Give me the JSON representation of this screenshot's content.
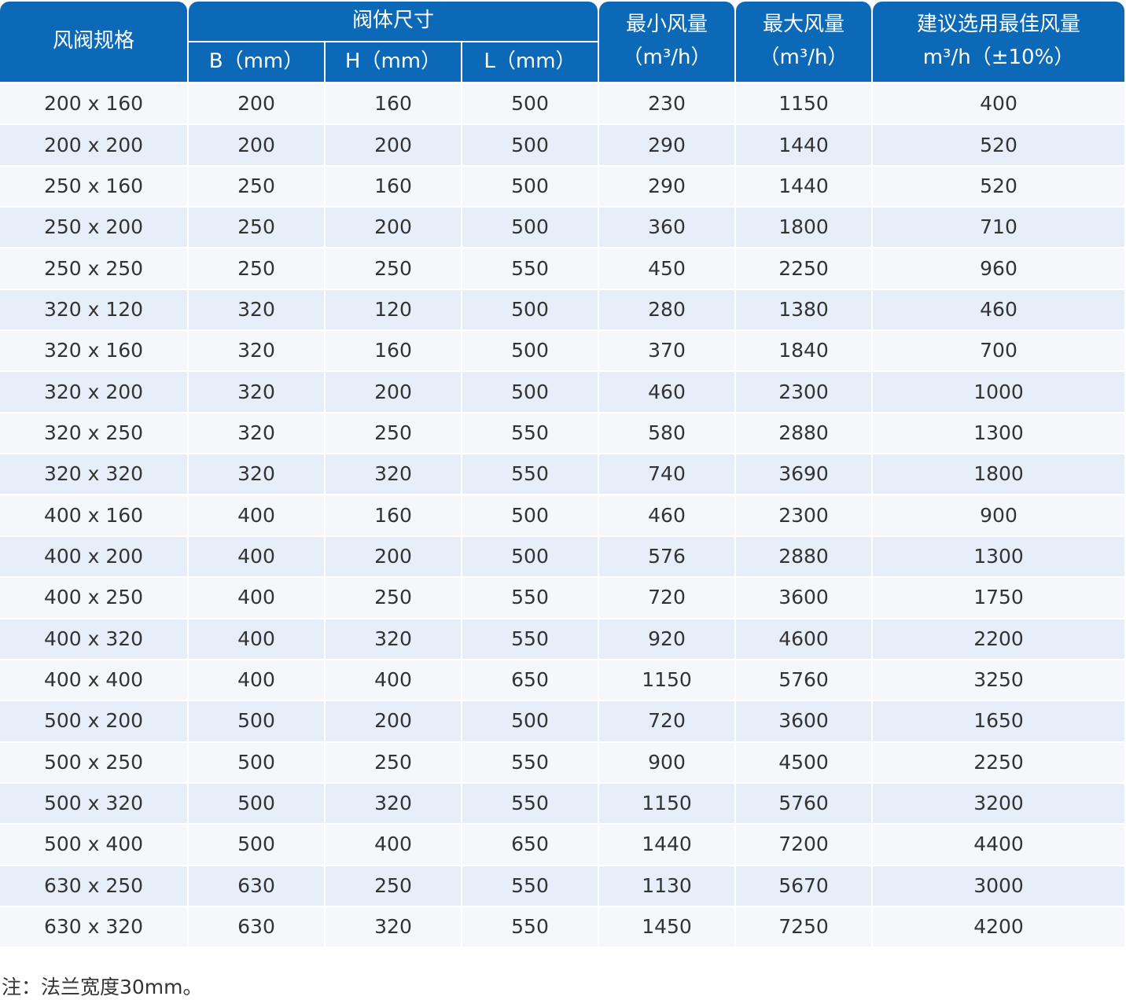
{
  "header": {
    "spec": "风阀规格",
    "body_size": "阀体尺寸",
    "b": "B（mm）",
    "h": "H（mm）",
    "l": "L（mm）",
    "min_flow": [
      "最小风量",
      "（m³/h）"
    ],
    "max_flow": [
      "最大风量",
      "（m³/h）"
    ],
    "best_flow": [
      "建议选用最佳风量",
      "m³/h（±10%）"
    ]
  },
  "table": {
    "rows": [
      [
        "200 x 160",
        "200",
        "160",
        "500",
        "230",
        "1150",
        "400"
      ],
      [
        "200 x 200",
        "200",
        "200",
        "500",
        "290",
        "1440",
        "520"
      ],
      [
        "250 x 160",
        "250",
        "160",
        "500",
        "290",
        "1440",
        "520"
      ],
      [
        "250 x 200",
        "250",
        "200",
        "500",
        "360",
        "1800",
        "710"
      ],
      [
        "250 x 250",
        "250",
        "250",
        "550",
        "450",
        "2250",
        "960"
      ],
      [
        "320 x 120",
        "320",
        "120",
        "500",
        "280",
        "1380",
        "460"
      ],
      [
        "320 x 160",
        "320",
        "160",
        "500",
        "370",
        "1840",
        "700"
      ],
      [
        "320 x 200",
        "320",
        "200",
        "500",
        "460",
        "2300",
        "1000"
      ],
      [
        "320 x 250",
        "320",
        "250",
        "550",
        "580",
        "2880",
        "1300"
      ],
      [
        "320 x 320",
        "320",
        "320",
        "550",
        "740",
        "3690",
        "1800"
      ],
      [
        "400 x 160",
        "400",
        "160",
        "500",
        "460",
        "2300",
        "900"
      ],
      [
        "400 x 200",
        "400",
        "200",
        "500",
        "576",
        "2880",
        "1300"
      ],
      [
        "400 x 250",
        "400",
        "250",
        "550",
        "720",
        "3600",
        "1750"
      ],
      [
        "400 x 320",
        "400",
        "320",
        "550",
        "920",
        "4600",
        "2200"
      ],
      [
        "400 x 400",
        "400",
        "400",
        "650",
        "1150",
        "5760",
        "3250"
      ],
      [
        "500 x 200",
        "500",
        "200",
        "500",
        "720",
        "3600",
        "1650"
      ],
      [
        "500 x 250",
        "500",
        "250",
        "550",
        "900",
        "4500",
        "2250"
      ],
      [
        "500 x 320",
        "500",
        "320",
        "550",
        "1150",
        "5760",
        "3200"
      ],
      [
        "500 x 400",
        "500",
        "400",
        "650",
        "1440",
        "7200",
        "4400"
      ],
      [
        "630 x 250",
        "630",
        "250",
        "550",
        "1130",
        "5670",
        "3000"
      ],
      [
        "630 x 320",
        "630",
        "320",
        "550",
        "1450",
        "7250",
        "4200"
      ]
    ]
  },
  "note": "注：法兰宽度30mm。"
}
